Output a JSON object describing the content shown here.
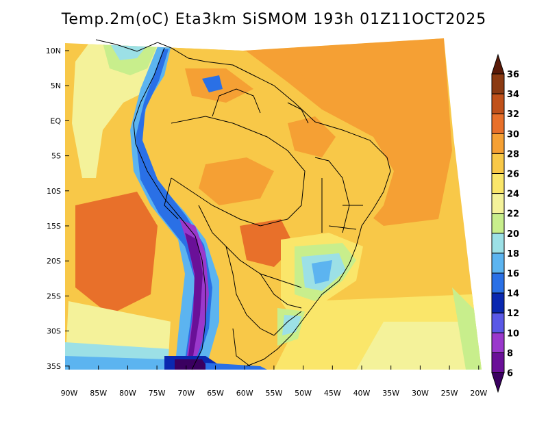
{
  "title": "Temp.2m(oC) Eta3km SiSMOM 193h 01Z11OCT2025",
  "lat_ticks": [
    "10N",
    "5N",
    "EQ",
    "5S",
    "10S",
    "15S",
    "20S",
    "25S",
    "30S",
    "35S"
  ],
  "lon_ticks": [
    "90W",
    "85W",
    "80W",
    "75W",
    "70W",
    "65W",
    "60W",
    "55W",
    "50W",
    "45W",
    "40W",
    "35W",
    "30W",
    "25W",
    "20W"
  ],
  "colorbar": {
    "labels": [
      "36",
      "34",
      "32",
      "30",
      "28",
      "26",
      "24",
      "22",
      "20",
      "18",
      "16",
      "14",
      "12",
      "10",
      "8",
      "6"
    ],
    "colors": [
      "#5a1a08",
      "#8b3a12",
      "#c0511a",
      "#e8702a",
      "#f5a034",
      "#f8c848",
      "#fae66a",
      "#f4f29a",
      "#c8ee8c",
      "#9ce0e6",
      "#5cb4f0",
      "#2a70e6",
      "#0a28b0",
      "#5a58e6",
      "#9a38cc",
      "#6a1098",
      "#3a0060"
    ]
  }
}
